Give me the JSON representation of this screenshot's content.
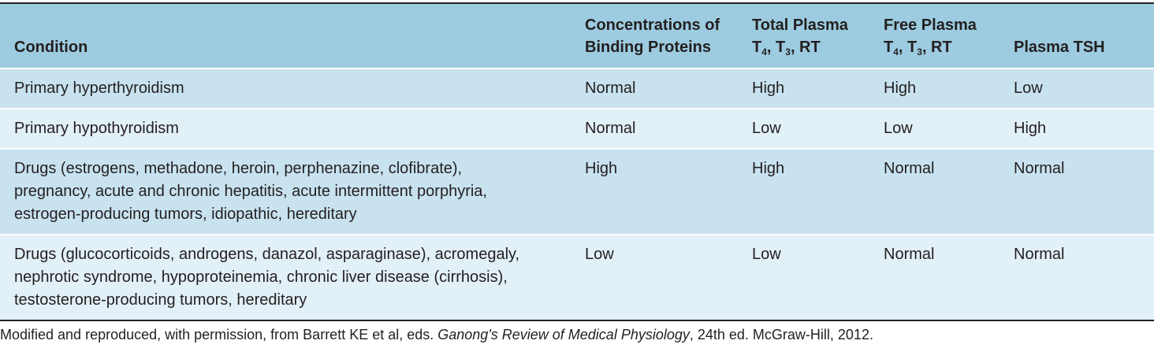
{
  "table": {
    "headers": {
      "condition": "Condition",
      "binding_line1": "Concentrations of",
      "binding_line2": "Binding Proteins",
      "total_line1": "Total Plasma",
      "total_T": "T",
      "total_T_sub1": "4",
      "total_sep1": ", T",
      "total_T_sub2": "3",
      "total_sep2": ", RT",
      "free_line1": "Free Plasma",
      "free_T": "T",
      "free_T_sub1": "4",
      "free_sep1": ", T",
      "free_T_sub2": "3",
      "free_sep2": ", RT",
      "tsh": "Plasma TSH"
    },
    "rows": [
      {
        "condition": [
          "Primary hyperthyroidism"
        ],
        "binding": "Normal",
        "total": "High",
        "free": "High",
        "tsh": "Low"
      },
      {
        "condition": [
          "Primary hypothyroidism"
        ],
        "binding": "Normal",
        "total": "Low",
        "free": "Low",
        "tsh": "High"
      },
      {
        "condition": [
          "Drugs (estrogens, methadone, heroin, perphenazine, clofibrate),",
          "pregnancy, acute and chronic hepatitis, acute intermittent porphyria,",
          "estrogen-producing tumors, idiopathic, hereditary"
        ],
        "binding": "High",
        "total": "High",
        "free": "Normal",
        "tsh": "Normal"
      },
      {
        "condition": [
          "Drugs (glucocorticoids, androgens, danazol, asparaginase), acromegaly,",
          "nephrotic syndrome, hypoproteinemia, chronic liver disease (cirrhosis),",
          "testosterone-producing tumors, hereditary"
        ],
        "binding": "Low",
        "total": "Low",
        "free": "Normal",
        "tsh": "Normal"
      }
    ]
  },
  "footnote": {
    "prefix": "Modified and reproduced, with permission, from Barrett KE et al, eds. ",
    "title": "Ganong's Review of Medical Physiology",
    "suffix": ", 24th ed. McGraw-Hill, 2012."
  }
}
